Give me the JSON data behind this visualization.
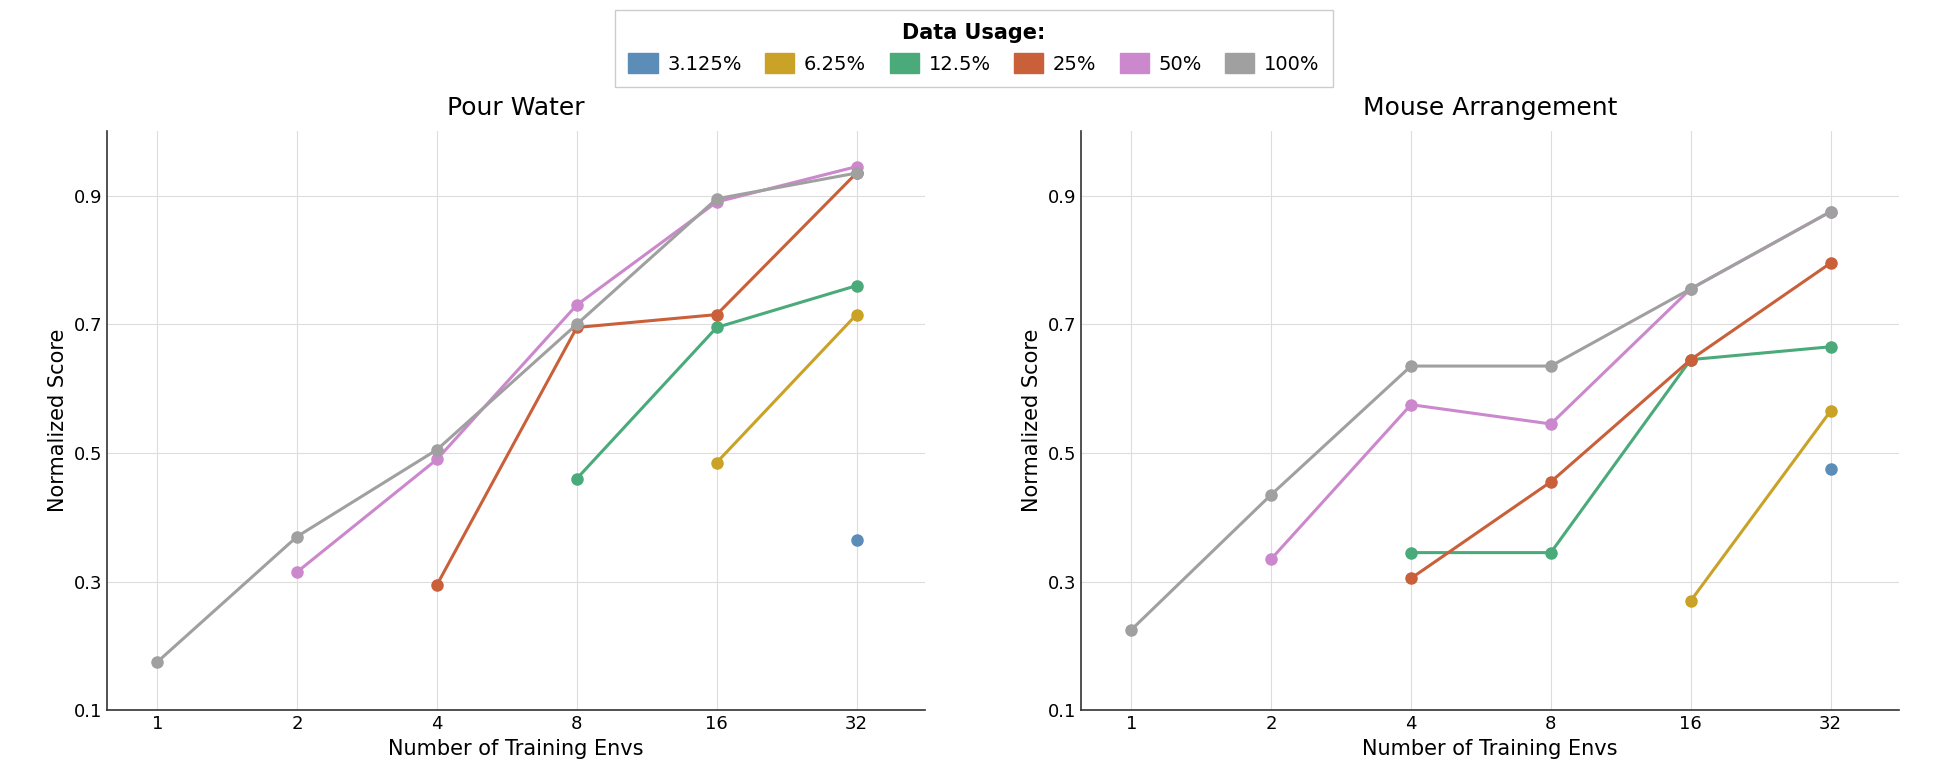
{
  "x_ticks": [
    1,
    2,
    4,
    8,
    16,
    32
  ],
  "series": [
    {
      "label": "3.125%",
      "color": "#5b8db8",
      "pour_water": {
        "x": [
          32
        ],
        "y": [
          0.365
        ]
      },
      "mouse_arrangement": {
        "x": [
          32
        ],
        "y": [
          0.475
        ]
      }
    },
    {
      "label": "6.25%",
      "color": "#c9a227",
      "pour_water": {
        "x": [
          16,
          32
        ],
        "y": [
          0.485,
          0.715
        ]
      },
      "mouse_arrangement": {
        "x": [
          16,
          32
        ],
        "y": [
          0.27,
          0.565
        ]
      }
    },
    {
      "label": "12.5%",
      "color": "#4aaa7a",
      "pour_water": {
        "x": [
          8,
          16,
          32
        ],
        "y": [
          0.46,
          0.695,
          0.76
        ]
      },
      "mouse_arrangement": {
        "x": [
          4,
          8,
          16,
          32
        ],
        "y": [
          0.345,
          0.345,
          0.645,
          0.665
        ]
      }
    },
    {
      "label": "25%",
      "color": "#c9603a",
      "pour_water": {
        "x": [
          4,
          8,
          16,
          32
        ],
        "y": [
          0.295,
          0.695,
          0.715,
          0.935
        ]
      },
      "mouse_arrangement": {
        "x": [
          4,
          8,
          16,
          32
        ],
        "y": [
          0.305,
          0.455,
          0.645,
          0.795
        ]
      }
    },
    {
      "label": "50%",
      "color": "#cc88cc",
      "pour_water": {
        "x": [
          2,
          4,
          8,
          16,
          32
        ],
        "y": [
          0.315,
          0.49,
          0.73,
          0.89,
          0.945
        ]
      },
      "mouse_arrangement": {
        "x": [
          2,
          4,
          8,
          16,
          32
        ],
        "y": [
          0.335,
          0.575,
          0.545,
          0.755,
          0.875
        ]
      }
    },
    {
      "label": "100%",
      "color": "#a0a0a0",
      "pour_water": {
        "x": [
          1,
          2,
          4,
          8,
          16,
          32
        ],
        "y": [
          0.175,
          0.37,
          0.505,
          0.7,
          0.895,
          0.935
        ]
      },
      "mouse_arrangement": {
        "x": [
          1,
          2,
          4,
          8,
          16,
          32
        ],
        "y": [
          0.225,
          0.435,
          0.635,
          0.635,
          0.755,
          0.875
        ]
      }
    }
  ],
  "ylim": [
    0.1,
    1.0
  ],
  "yticks": [
    0.1,
    0.3,
    0.5,
    0.7,
    0.9
  ],
  "title_pour": "Pour Water",
  "title_mouse": "Mouse Arrangement",
  "xlabel": "Number of Training Envs",
  "ylabel": "Normalized Score",
  "legend_title": "Data Usage:",
  "background_color": "#ffffff",
  "grid_color": "#dddddd",
  "marker": "o",
  "markersize": 8,
  "linewidth": 2.2
}
